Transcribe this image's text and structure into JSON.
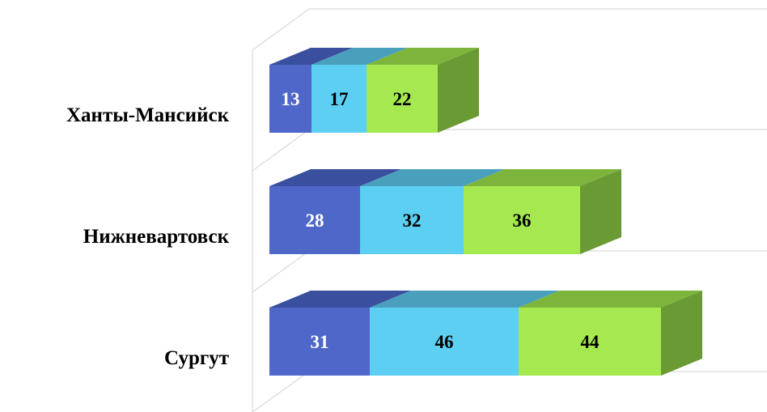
{
  "chart_data": {
    "type": "bar",
    "orientation": "horizontal",
    "stacked": true,
    "three_d": true,
    "categories": [
      "Ханты-Мансийск",
      "Нижневартовск",
      "Сургут"
    ],
    "series": [
      {
        "values": [
          13,
          28,
          31
        ],
        "color": "#4f67c9",
        "top_color": "#3a4f9e",
        "label_color": "#ffffff"
      },
      {
        "values": [
          17,
          32,
          46
        ],
        "color": "#5dcff2",
        "top_color": "#4a9fbc",
        "label_color": "#000000"
      },
      {
        "values": [
          22,
          36,
          44
        ],
        "color": "#a5e850",
        "top_color": "#7db53c",
        "side_color": "#6a9a33",
        "label_color": "#000000"
      }
    ],
    "gridlines": true,
    "grid_color": "#d9d9d9"
  }
}
